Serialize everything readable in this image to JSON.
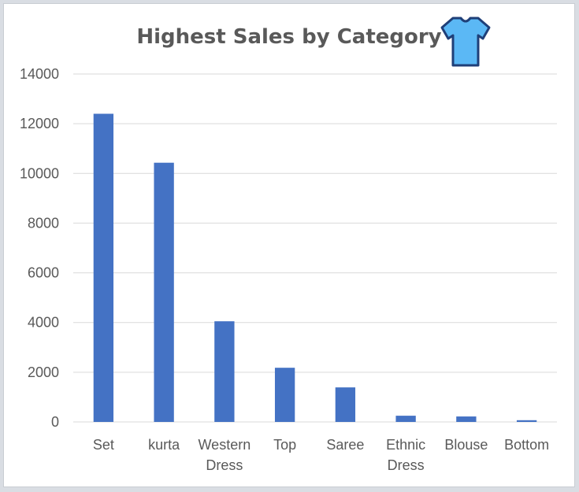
{
  "chart_data": {
    "type": "bar",
    "title": "Highest Sales by Category",
    "title_icon": "tshirt-icon",
    "categories": [
      "Set",
      "kurta",
      "Western Dress",
      "Top",
      "Saree",
      "Ethnic Dress",
      "Blouse",
      "Bottom"
    ],
    "category_lines": [
      [
        "Set"
      ],
      [
        "kurta"
      ],
      [
        "Western",
        "Dress"
      ],
      [
        "Top"
      ],
      [
        "Saree"
      ],
      [
        "Ethnic",
        "Dress"
      ],
      [
        "Blouse"
      ],
      [
        "Bottom"
      ]
    ],
    "values": [
      12400,
      10430,
      4050,
      2180,
      1390,
      250,
      220,
      70
    ],
    "ylim": [
      0,
      14000
    ],
    "yticks": [
      0,
      2000,
      4000,
      6000,
      8000,
      10000,
      12000,
      14000
    ],
    "grid": true,
    "legend": "none",
    "bar_color": "#4472c4",
    "grid_color": "#d9d9d9",
    "text_color": "#595959",
    "icon_colors": {
      "fill": "#5bb8f5",
      "outline": "#1f3f78",
      "sleeve": "#3a8fd6"
    }
  }
}
